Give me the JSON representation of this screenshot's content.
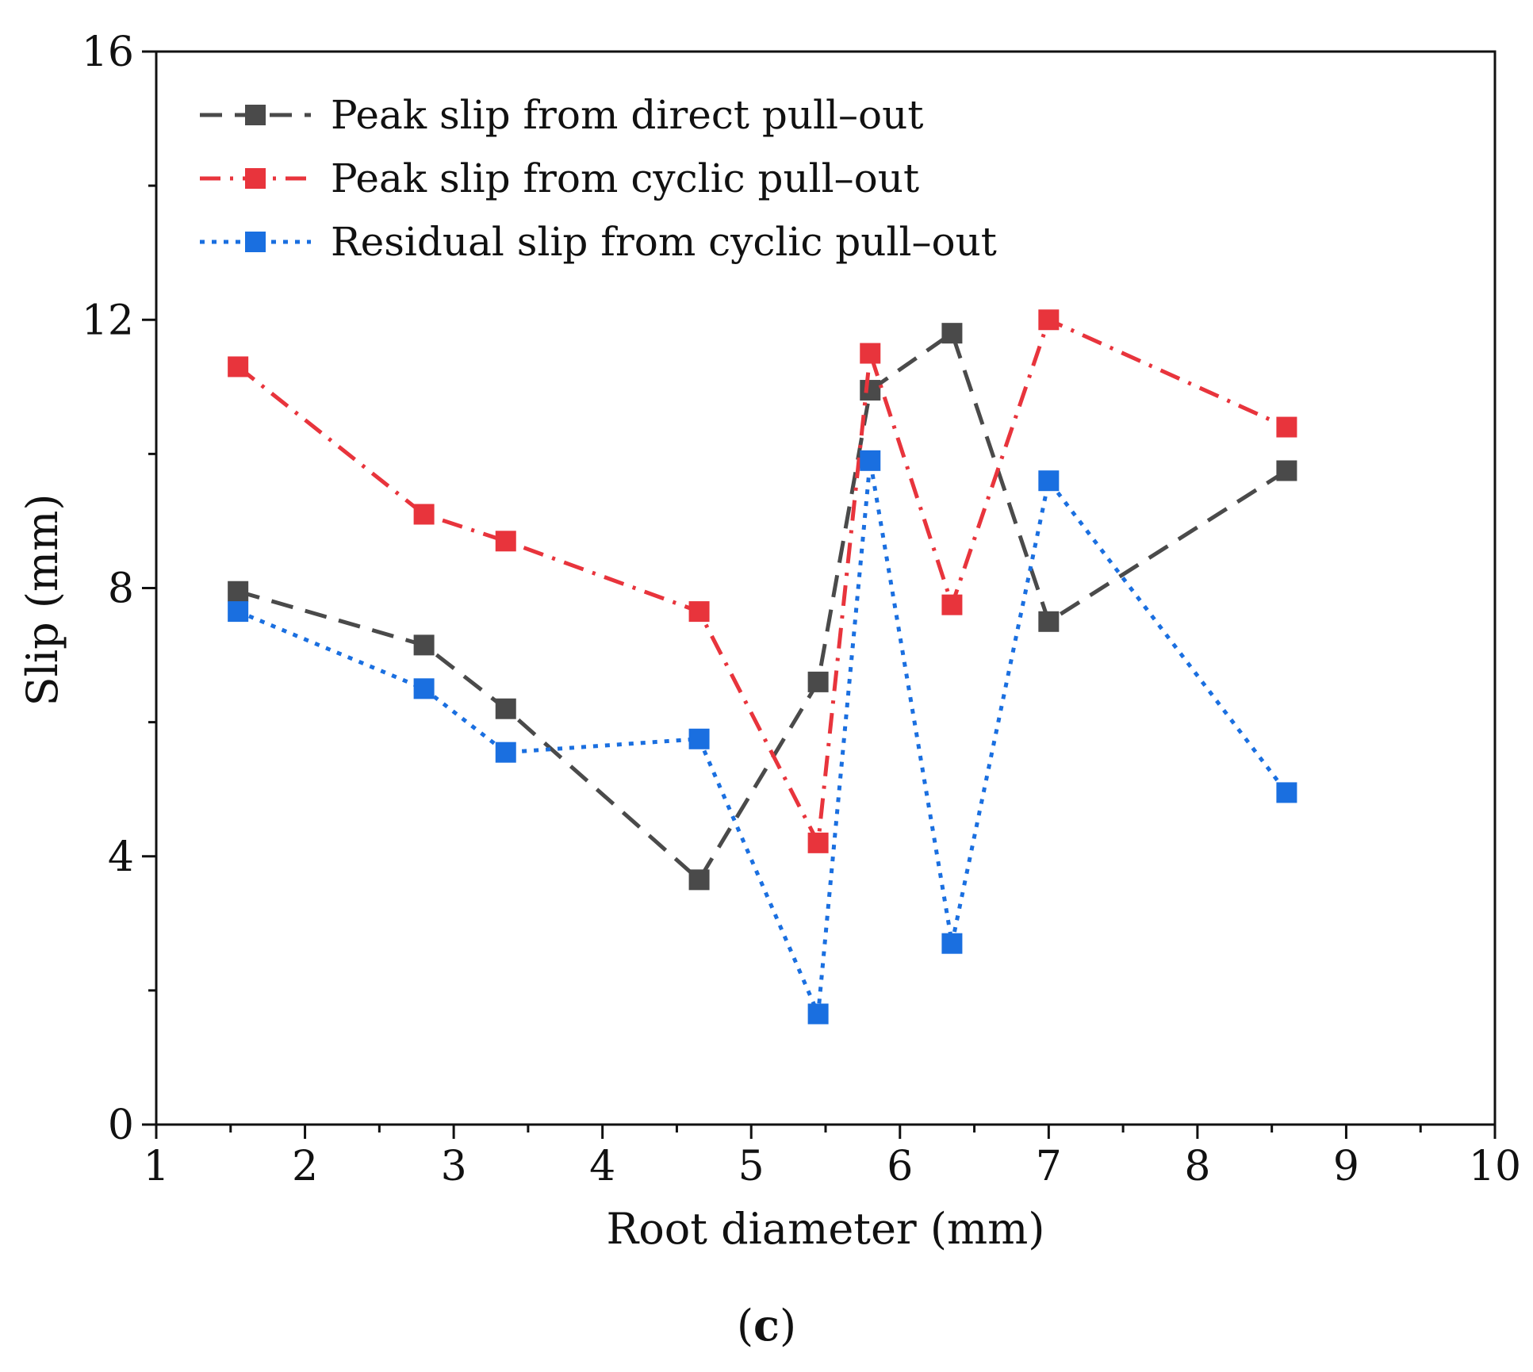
{
  "chart_data": {
    "type": "line",
    "title": "",
    "xlabel": "Root diameter (mm)",
    "ylabel": "Slip (mm)",
    "xlim": [
      1,
      10
    ],
    "ylim": [
      0,
      16
    ],
    "xticks": [
      1,
      2,
      3,
      4,
      5,
      6,
      7,
      8,
      9,
      10
    ],
    "yticks": [
      0,
      4,
      8,
      12,
      16
    ],
    "grid": false,
    "legend_position": "top-left",
    "series": [
      {
        "name": "Peak slip from direct pull–out",
        "color": "#4a4a4a",
        "line_style": "dashed",
        "marker": "square",
        "x": [
          1.55,
          2.8,
          3.35,
          4.65,
          5.45,
          5.8,
          6.35,
          7.0,
          8.6
        ],
        "y": [
          7.95,
          7.15,
          6.2,
          3.65,
          6.6,
          10.95,
          11.8,
          7.5,
          9.75
        ]
      },
      {
        "name": "Peak slip from cyclic pull–out",
        "color": "#e8343c",
        "line_style": "dash-dot",
        "marker": "square",
        "x": [
          1.55,
          2.8,
          3.35,
          4.65,
          5.45,
          5.8,
          6.35,
          7.0,
          8.6
        ],
        "y": [
          11.3,
          9.1,
          8.7,
          7.65,
          4.2,
          11.5,
          7.75,
          12.0,
          10.4
        ]
      },
      {
        "name": "Residual slip from cyclic pull–out",
        "color": "#1a6fe0",
        "line_style": "dotted",
        "marker": "square",
        "x": [
          1.55,
          2.8,
          3.35,
          4.65,
          5.45,
          5.8,
          6.35,
          7.0,
          8.6
        ],
        "y": [
          7.65,
          6.5,
          5.55,
          5.75,
          1.65,
          9.9,
          2.7,
          9.6,
          4.95
        ]
      }
    ]
  },
  "caption": {
    "open": "(",
    "letter": "c",
    "close": ")"
  }
}
